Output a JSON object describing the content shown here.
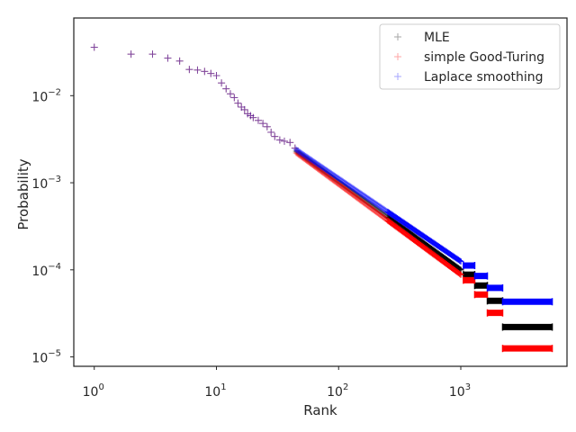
{
  "chart_data": {
    "type": "scatter",
    "title": "",
    "xlabel": "Rank",
    "ylabel": "Probability",
    "xscale": "log",
    "yscale": "log",
    "xlim": [
      0.68,
      7400
    ],
    "ylim": [
      7.8e-06,
      0.078
    ],
    "grid": false,
    "legend_position": "top-right",
    "marker": "+",
    "x_ticks": [
      {
        "base": "10",
        "exp": "0",
        "value": 1
      },
      {
        "base": "10",
        "exp": "1",
        "value": 10
      },
      {
        "base": "10",
        "exp": "2",
        "value": 100
      },
      {
        "base": "10",
        "exp": "3",
        "value": 1000
      }
    ],
    "y_ticks": [
      {
        "base": "10",
        "exp": "−5",
        "value": 1e-05
      },
      {
        "base": "10",
        "exp": "−4",
        "value": 0.0001
      },
      {
        "base": "10",
        "exp": "−3",
        "value": 0.001
      },
      {
        "base": "10",
        "exp": "−2",
        "value": 0.01
      }
    ],
    "series": [
      {
        "name": "MLE",
        "color": "#000000",
        "head": [
          [
            1,
            0.036
          ],
          [
            2,
            0.03
          ],
          [
            3,
            0.03
          ],
          [
            4,
            0.027
          ],
          [
            5,
            0.025
          ],
          [
            6,
            0.02
          ],
          [
            7,
            0.0197
          ],
          [
            8,
            0.019
          ],
          [
            9,
            0.018
          ],
          [
            10,
            0.017
          ],
          [
            11,
            0.014
          ],
          [
            12,
            0.012
          ],
          [
            13,
            0.0105
          ],
          [
            14,
            0.0095
          ],
          [
            15,
            0.0082
          ],
          [
            16,
            0.0074
          ],
          [
            17,
            0.0069
          ],
          [
            18,
            0.0062
          ],
          [
            19,
            0.0059
          ],
          [
            20,
            0.0056
          ],
          [
            22,
            0.0052
          ],
          [
            24,
            0.0048
          ],
          [
            26,
            0.0044
          ],
          [
            28,
            0.0038
          ],
          [
            30,
            0.0034
          ],
          [
            33,
            0.0031
          ],
          [
            36,
            0.003
          ],
          [
            40,
            0.0029
          ],
          [
            44,
            0.0025
          ]
        ],
        "tail_start": {
          "x": 45,
          "y": 0.0023
        },
        "tail_end": {
          "x": 1000,
          "y": 0.0001
        },
        "plateaus": [
          {
            "x_start": 1050,
            "x_end": 1300,
            "y": 8.8e-05
          },
          {
            "x_start": 1300,
            "x_end": 1650,
            "y": 6.6e-05
          },
          {
            "x_start": 1650,
            "x_end": 2200,
            "y": 4.4e-05
          },
          {
            "x_start": 2200,
            "x_end": 5600,
            "y": 2.2e-05
          }
        ]
      },
      {
        "name": "simple Good-Turing",
        "color": "#ff0000",
        "head": [
          [
            1,
            0.036
          ],
          [
            2,
            0.03
          ],
          [
            3,
            0.03
          ],
          [
            4,
            0.027
          ],
          [
            5,
            0.025
          ],
          [
            6,
            0.02
          ],
          [
            7,
            0.0197
          ],
          [
            8,
            0.019
          ],
          [
            9,
            0.018
          ],
          [
            10,
            0.017
          ],
          [
            11,
            0.014
          ],
          [
            12,
            0.012
          ],
          [
            13,
            0.0105
          ],
          [
            14,
            0.0095
          ],
          [
            15,
            0.0082
          ],
          [
            16,
            0.0074
          ],
          [
            17,
            0.0069
          ],
          [
            18,
            0.0062
          ],
          [
            19,
            0.0059
          ],
          [
            20,
            0.0056
          ],
          [
            22,
            0.0052
          ],
          [
            24,
            0.0048
          ],
          [
            26,
            0.0044
          ],
          [
            28,
            0.0038
          ],
          [
            30,
            0.0034
          ],
          [
            33,
            0.0031
          ],
          [
            36,
            0.003
          ],
          [
            40,
            0.0029
          ],
          [
            44,
            0.0025
          ]
        ],
        "tail_start": {
          "x": 45,
          "y": 0.0022
        },
        "tail_end": {
          "x": 1000,
          "y": 8.8e-05
        },
        "plateaus": [
          {
            "x_start": 1050,
            "x_end": 1300,
            "y": 7.6e-05
          },
          {
            "x_start": 1300,
            "x_end": 1650,
            "y": 5.2e-05
          },
          {
            "x_start": 1650,
            "x_end": 2200,
            "y": 3.2e-05
          },
          {
            "x_start": 2200,
            "x_end": 5600,
            "y": 1.25e-05
          }
        ]
      },
      {
        "name": "Laplace smoothing",
        "color": "#0000ff",
        "head": [
          [
            1,
            0.036
          ],
          [
            2,
            0.03
          ],
          [
            3,
            0.03
          ],
          [
            4,
            0.027
          ],
          [
            5,
            0.025
          ],
          [
            6,
            0.02
          ],
          [
            7,
            0.0197
          ],
          [
            8,
            0.019
          ],
          [
            9,
            0.018
          ],
          [
            10,
            0.017
          ],
          [
            11,
            0.014
          ],
          [
            12,
            0.012
          ],
          [
            13,
            0.0105
          ],
          [
            14,
            0.0095
          ],
          [
            15,
            0.0082
          ],
          [
            16,
            0.0074
          ],
          [
            17,
            0.0069
          ],
          [
            18,
            0.0062
          ],
          [
            19,
            0.0059
          ],
          [
            20,
            0.0056
          ],
          [
            22,
            0.0052
          ],
          [
            24,
            0.0048
          ],
          [
            26,
            0.0044
          ],
          [
            28,
            0.0038
          ],
          [
            30,
            0.0034
          ],
          [
            33,
            0.0031
          ],
          [
            36,
            0.003
          ],
          [
            40,
            0.0029
          ],
          [
            44,
            0.0025
          ]
        ],
        "tail_start": {
          "x": 45,
          "y": 0.0024
        },
        "tail_end": {
          "x": 1000,
          "y": 0.000125
        },
        "plateaus": [
          {
            "x_start": 1050,
            "x_end": 1300,
            "y": 0.000112
          },
          {
            "x_start": 1300,
            "x_end": 1650,
            "y": 8.5e-05
          },
          {
            "x_start": 1650,
            "x_end": 2200,
            "y": 6.2e-05
          },
          {
            "x_start": 2200,
            "x_end": 5600,
            "y": 4.3e-05
          }
        ]
      }
    ]
  }
}
